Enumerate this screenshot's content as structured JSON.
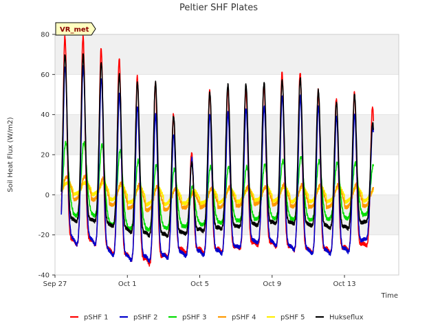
{
  "chart_data": {
    "type": "line",
    "title": "Peltier SHF Plates",
    "xlabel": "Time",
    "ylabel": "Soil Heat Flux (W/m2)",
    "badge": "VR_met",
    "x_range_days": [
      0,
      19
    ],
    "ylim": [
      -40,
      80
    ],
    "yticks": [
      -40,
      -20,
      0,
      20,
      40,
      60,
      80
    ],
    "xticks": [
      {
        "day": 0,
        "label": "Sep 27"
      },
      {
        "day": 4,
        "label": "Oct 1"
      },
      {
        "day": 8,
        "label": "Oct 5"
      },
      {
        "day": 12,
        "label": "Oct 9"
      },
      {
        "day": 16,
        "label": "Oct 13"
      }
    ],
    "grid": "horizontal bands",
    "legend_position": "bottom",
    "data_window_days": [
      0.35,
      17.6
    ],
    "days": [
      1,
      2,
      3,
      4,
      5,
      6,
      7,
      8,
      9,
      10,
      11,
      12,
      13,
      14,
      15,
      16,
      17
    ],
    "series": [
      {
        "name": "pSHF 1",
        "color": "#ff0000",
        "peak": [
          79,
          73,
          68,
          59,
          56,
          40,
          21,
          52,
          53,
          53,
          55,
          61,
          61,
          52,
          48,
          51,
          44
        ],
        "night_min": [
          -23,
          -28,
          -33,
          -35,
          -37,
          -31,
          -30,
          -31,
          -30,
          -28,
          -26,
          -28,
          -30,
          -31,
          -30,
          -29,
          -26
        ]
      },
      {
        "name": "pSHF 2",
        "color": "#0000cc",
        "peak": [
          64,
          58,
          50,
          44,
          40,
          30,
          18,
          40,
          41,
          43,
          44,
          49,
          49,
          44,
          39,
          40,
          34
        ],
        "night_min": [
          -21,
          -29,
          -34,
          -35,
          -35,
          -33,
          -32,
          -32,
          -31,
          -27,
          -25,
          -28,
          -30,
          -32,
          -31,
          -30,
          -21
        ]
      },
      {
        "name": "pSHF 3",
        "color": "#00dd00",
        "peak": [
          26,
          25,
          22,
          17,
          15,
          13,
          4,
          14,
          14,
          14,
          15,
          17,
          19,
          17,
          16,
          16,
          15
        ],
        "night_min": [
          -7,
          -14,
          -18,
          -19,
          -19,
          -18,
          -17,
          -16,
          -15,
          -14,
          -13,
          -13,
          -14,
          -14,
          -13,
          -13,
          -10
        ]
      },
      {
        "name": "pSHF 4",
        "color": "#ff9900",
        "peak": [
          9,
          8,
          6,
          5,
          4,
          3,
          1,
          3,
          4,
          4,
          4,
          5,
          5,
          5,
          5,
          5,
          4
        ],
        "night_min": [
          -1,
          -4,
          -7,
          -8,
          -9,
          -8,
          -7,
          -7,
          -7,
          -6,
          -5,
          -6,
          -7,
          -7,
          -7,
          -7,
          -6
        ]
      },
      {
        "name": "pSHF 5",
        "color": "#ffee00",
        "peak": [
          6,
          6,
          5,
          4,
          4,
          3,
          2,
          3,
          3,
          3,
          4,
          4,
          4,
          4,
          4,
          4,
          3
        ],
        "night_min": [
          2,
          -1,
          -4,
          -5,
          -6,
          -5,
          -5,
          -5,
          -4,
          -4,
          -3,
          -4,
          -4,
          -4,
          -4,
          -4,
          -3
        ]
      },
      {
        "name": "Hukseflux",
        "color": "#000000",
        "peak": [
          70,
          66,
          60,
          56,
          56,
          39,
          16,
          51,
          55,
          55,
          56,
          57,
          58,
          52,
          46,
          50,
          36
        ],
        "night_min": [
          -13,
          -15,
          -18,
          -21,
          -22,
          -22,
          -20,
          -19,
          -18,
          -17,
          -16,
          -15,
          -16,
          -17,
          -18,
          -18,
          -13
        ]
      }
    ]
  }
}
